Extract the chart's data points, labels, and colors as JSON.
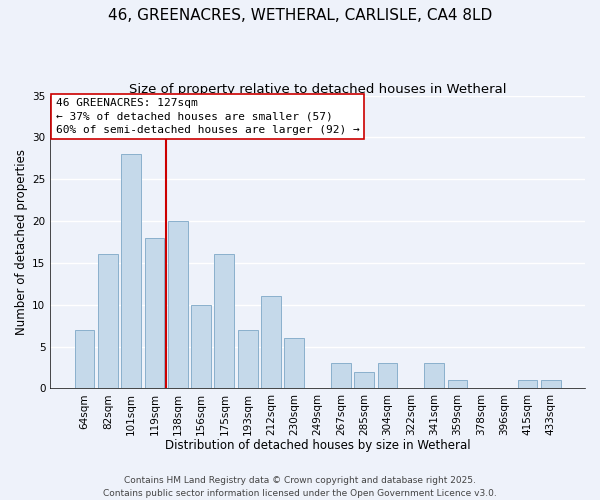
{
  "title": "46, GREENACRES, WETHERAL, CARLISLE, CA4 8LD",
  "subtitle": "Size of property relative to detached houses in Wetheral",
  "xlabel": "Distribution of detached houses by size in Wetheral",
  "ylabel": "Number of detached properties",
  "bar_labels": [
    "64sqm",
    "82sqm",
    "101sqm",
    "119sqm",
    "138sqm",
    "156sqm",
    "175sqm",
    "193sqm",
    "212sqm",
    "230sqm",
    "249sqm",
    "267sqm",
    "285sqm",
    "304sqm",
    "322sqm",
    "341sqm",
    "359sqm",
    "378sqm",
    "396sqm",
    "415sqm",
    "433sqm"
  ],
  "bar_values": [
    7,
    16,
    28,
    18,
    20,
    10,
    16,
    7,
    11,
    6,
    0,
    3,
    2,
    3,
    0,
    3,
    1,
    0,
    0,
    1,
    1
  ],
  "bar_color": "#c5d9ea",
  "bar_edge_color": "#8ab0cc",
  "background_color": "#eef2fa",
  "grid_color": "#ffffff",
  "ylim": [
    0,
    35
  ],
  "yticks": [
    0,
    5,
    10,
    15,
    20,
    25,
    30,
    35
  ],
  "property_line_color": "#cc0000",
  "annotation_title": "46 GREENACRES: 127sqm",
  "annotation_line1": "← 37% of detached houses are smaller (57)",
  "annotation_line2": "60% of semi-detached houses are larger (92) →",
  "footer_line1": "Contains HM Land Registry data © Crown copyright and database right 2025.",
  "footer_line2": "Contains public sector information licensed under the Open Government Licence v3.0.",
  "title_fontsize": 11,
  "subtitle_fontsize": 9.5,
  "axis_label_fontsize": 8.5,
  "tick_fontsize": 7.5,
  "annotation_fontsize": 8,
  "footer_fontsize": 6.5
}
